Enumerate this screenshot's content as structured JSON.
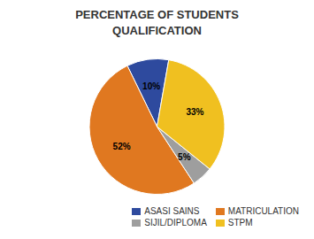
{
  "chart_data": {
    "type": "pie",
    "title": "PERCENTAGE OF STUDENTS\nQUALIFICATION",
    "categories": [
      "ASASI SAINS",
      "MATRICULATION",
      "SIJIL/DIPLOMA",
      "STPM"
    ],
    "values": [
      10,
      52,
      5,
      33
    ],
    "value_labels": [
      "10%",
      "52%",
      "5%",
      "33%"
    ],
    "colors": [
      "#2e4a9e",
      "#e07820",
      "#9e9e9e",
      "#f0c020"
    ],
    "data_labels": true,
    "legend": "lower right"
  }
}
